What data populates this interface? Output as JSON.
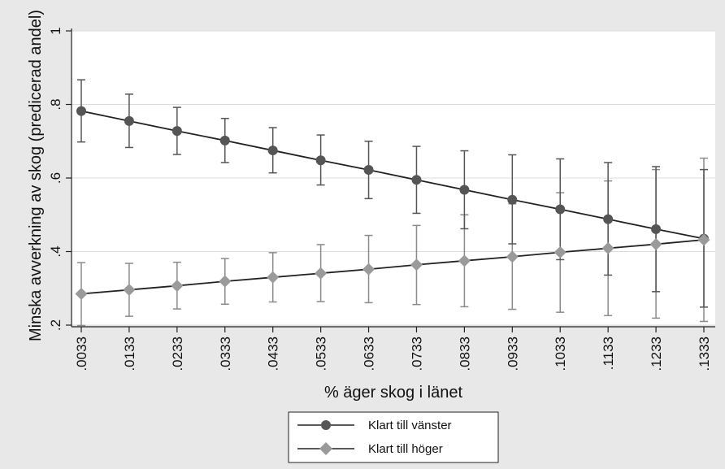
{
  "chart_data": {
    "type": "line",
    "xlabel": "% äger skog i länet",
    "ylabel": "Minska avverkning av skog (predicerad andel)",
    "x": [
      0.0033,
      0.0133,
      0.0233,
      0.0333,
      0.0433,
      0.0533,
      0.0633,
      0.0733,
      0.0833,
      0.0933,
      0.1033,
      0.1133,
      0.1233,
      0.1333
    ],
    "x_tick_labels": [
      ".0033",
      ".0133",
      ".0233",
      ".0333",
      ".0433",
      ".0533",
      ".0633",
      ".0733",
      ".0833",
      ".0933",
      ".1033",
      ".1133",
      ".1233",
      ".1333"
    ],
    "ylim": [
      0.2,
      1.0
    ],
    "y_ticks": [
      0.2,
      0.4,
      0.6,
      0.8,
      1.0
    ],
    "y_tick_labels": [
      ".2",
      ".4",
      ".6",
      ".8",
      "1"
    ],
    "grid": true,
    "legend_position": "bottom",
    "series": [
      {
        "name": "Klart till vänster",
        "marker": "circle",
        "color": "#555555",
        "errorbar_color": "#555555",
        "values": [
          0.782,
          0.755,
          0.728,
          0.702,
          0.675,
          0.648,
          0.622,
          0.595,
          0.568,
          0.541,
          0.515,
          0.488,
          0.461,
          0.435
        ],
        "lower": [
          0.698,
          0.683,
          0.664,
          0.642,
          0.614,
          0.581,
          0.544,
          0.504,
          0.462,
          0.421,
          0.378,
          0.336,
          0.291,
          0.249
        ],
        "upper": [
          0.867,
          0.828,
          0.792,
          0.762,
          0.737,
          0.717,
          0.7,
          0.686,
          0.674,
          0.663,
          0.652,
          0.642,
          0.631,
          0.623
        ]
      },
      {
        "name": "Klart till höger",
        "marker": "diamond",
        "color": "#9a9a9a",
        "errorbar_color": "#8a8a8a",
        "values": [
          0.285,
          0.296,
          0.307,
          0.319,
          0.33,
          0.341,
          0.352,
          0.364,
          0.375,
          0.386,
          0.398,
          0.409,
          0.42,
          0.432
        ],
        "lower": [
          0.199,
          0.224,
          0.244,
          0.257,
          0.263,
          0.264,
          0.261,
          0.256,
          0.25,
          0.243,
          0.235,
          0.226,
          0.219,
          0.21
        ],
        "upper": [
          0.37,
          0.368,
          0.371,
          0.381,
          0.397,
          0.419,
          0.444,
          0.471,
          0.5,
          0.53,
          0.56,
          0.592,
          0.623,
          0.654
        ]
      }
    ]
  }
}
